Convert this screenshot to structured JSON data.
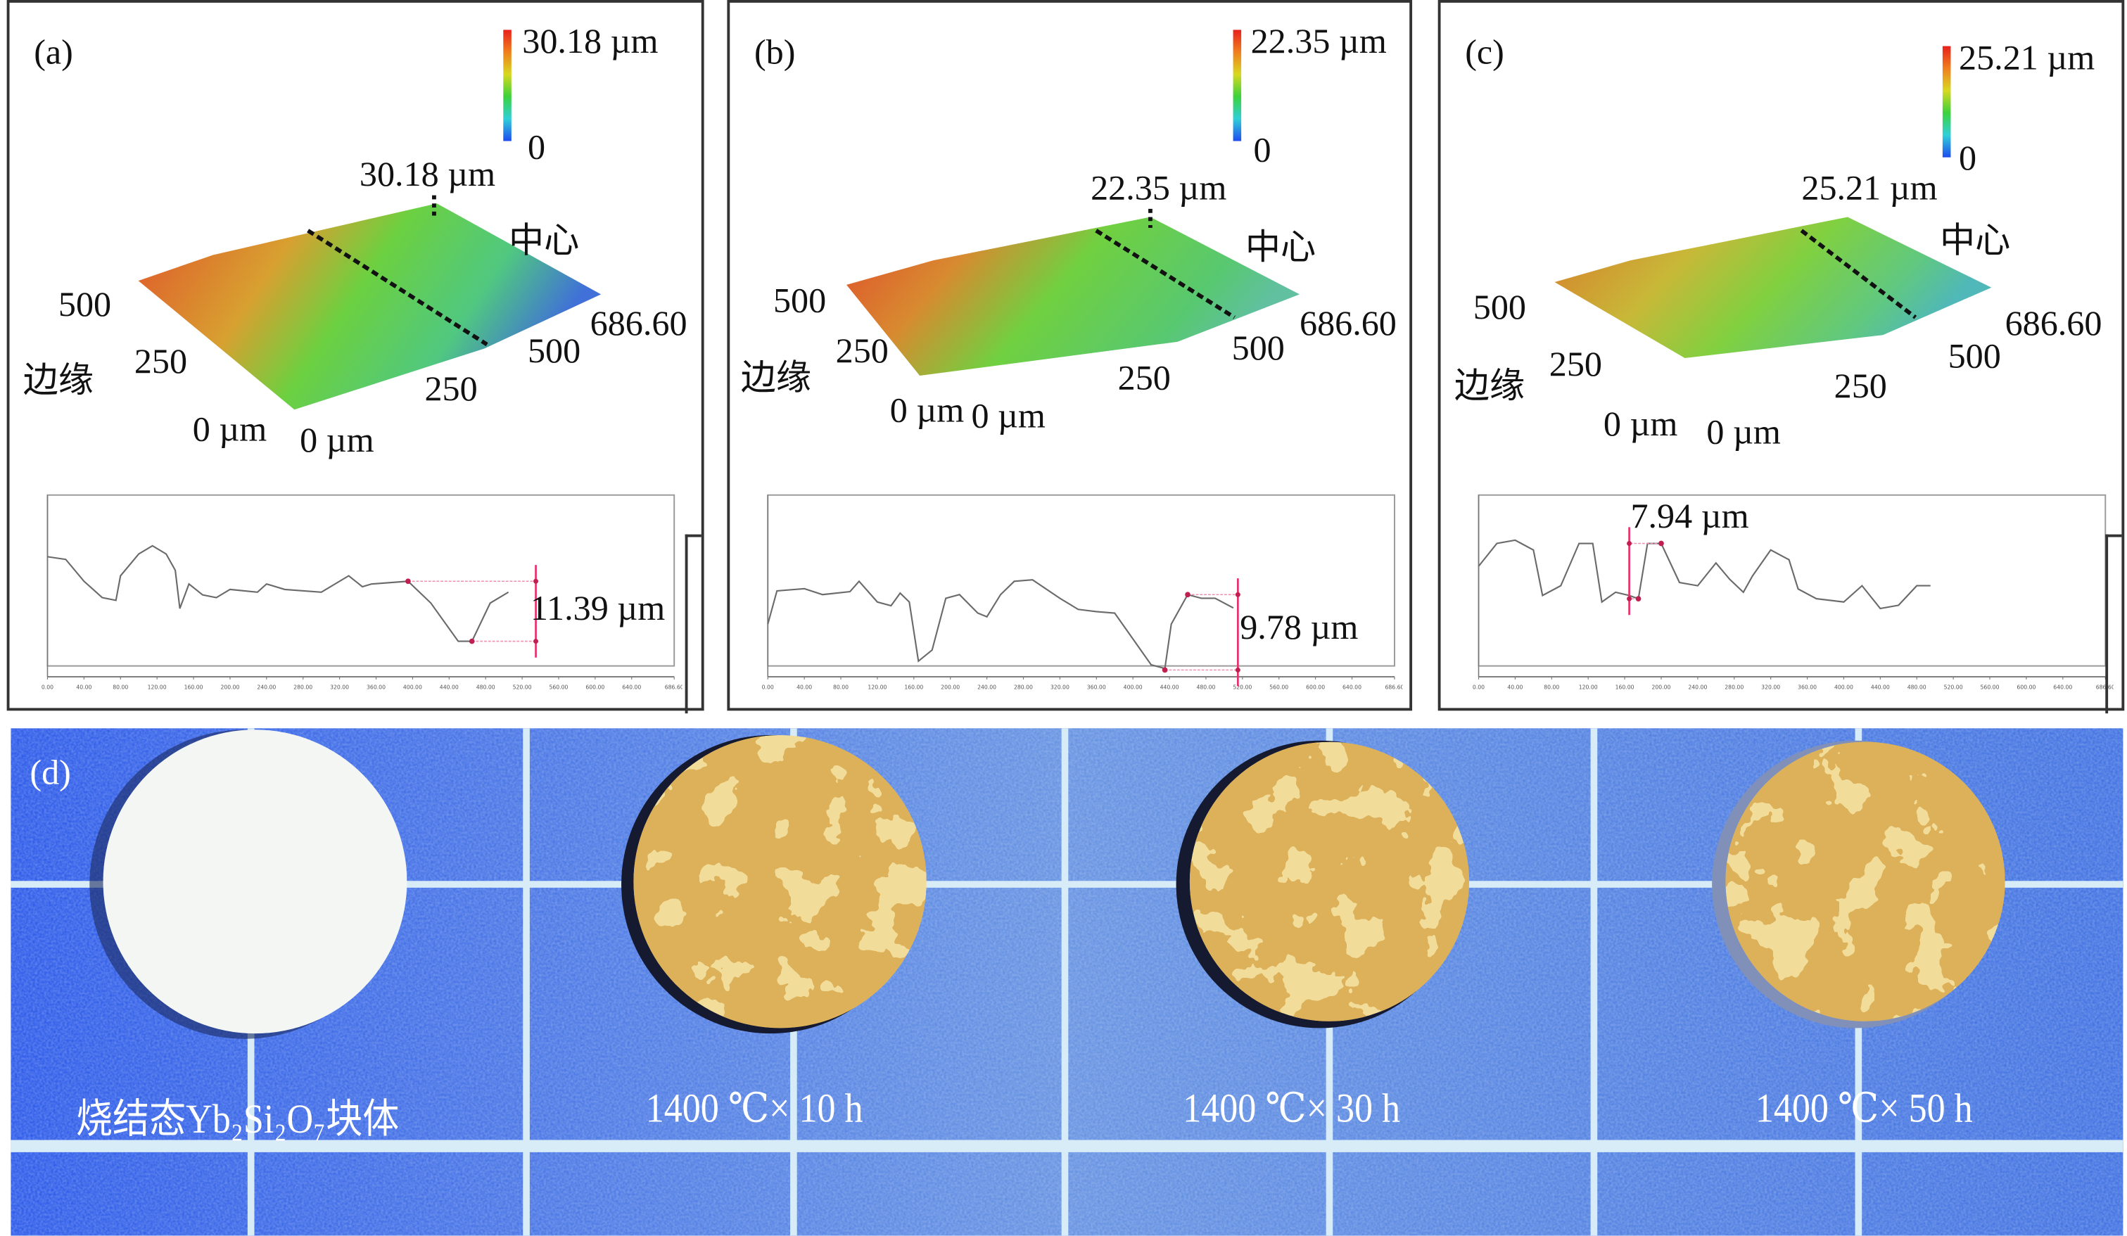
{
  "panels": [
    {
      "id": "a",
      "label": "(a)",
      "colorbar_max": "30.18 µm",
      "colorbar_min": "0",
      "peak_label": "30.18 µm",
      "center_label": "中心",
      "edge_label": "边缘",
      "y_axis_ticks": [
        "500",
        "250",
        "0 µm"
      ],
      "x_axis_ticks": [
        "0 µm",
        "250",
        "500",
        "686.60"
      ],
      "step_height": "11.39 µm"
    },
    {
      "id": "b",
      "label": "(b)",
      "colorbar_max": "22.35 µm",
      "colorbar_min": "0",
      "peak_label": "22.35 µm",
      "center_label": "中心",
      "edge_label": "边缘",
      "y_axis_ticks": [
        "500",
        "250",
        "0 µm"
      ],
      "x_axis_ticks": [
        "0 µm",
        "250",
        "500",
        "686.60"
      ],
      "step_height": "9.78 µm"
    },
    {
      "id": "c",
      "label": "(c)",
      "colorbar_max": "25.21 µm",
      "colorbar_min": "0",
      "peak_label": "25.21 µm",
      "center_label": "中心",
      "edge_label": "边缘",
      "y_axis_ticks": [
        "500",
        "250",
        "0 µm"
      ],
      "x_axis_ticks": [
        "0 µm",
        "250",
        "500",
        "686.60"
      ],
      "step_height": "7.94 µm"
    }
  ],
  "photo": {
    "label": "(d)",
    "samples": [
      "烧结态Yb₂Si₂O₇块体",
      "1400 ℃× 10 h",
      "1400 ℃× 30 h",
      "1400 ℃× 50 h"
    ],
    "colors": {
      "background": "#2a5fe6",
      "grid": "#d8ecf8",
      "pristine": "#f4f6f4",
      "oxide": "#b8741c",
      "disk_base": "#f2dc9a"
    }
  },
  "chart_data": [
    {
      "type": "line",
      "panel": "a",
      "unit": "µm",
      "xlim": [
        0,
        686.6
      ],
      "ylim": [
        -1.51,
        31.8
      ],
      "x_ticks": [
        "0.00",
        "40.00",
        "80.00",
        "120.00",
        "160.00",
        "200.00",
        "240.00",
        "280.00",
        "320.00",
        "360.00",
        "400.00",
        "440.00",
        "480.00",
        "520.00",
        "560.00",
        "600.00",
        "640.00",
        "686.60"
      ],
      "x": [
        0,
        20,
        40,
        60,
        75,
        80,
        100,
        115,
        130,
        140,
        145,
        155,
        170,
        185,
        200,
        230,
        240,
        260,
        300,
        330,
        345,
        355,
        395,
        420,
        450,
        465,
        485,
        505
      ],
      "y": [
        20.5,
        20,
        16,
        13,
        12.5,
        17,
        21,
        22.5,
        21,
        18,
        11,
        15.5,
        13.5,
        13,
        14.5,
        14,
        15.5,
        14.5,
        14,
        17,
        15,
        15.5,
        16,
        12,
        5,
        5,
        12,
        14
      ],
      "markers": [
        {
          "x": 395,
          "y": 16
        },
        {
          "x": 465,
          "y": 5
        }
      ],
      "measure_x": 535,
      "annotation": "11.39 µm"
    },
    {
      "type": "line",
      "panel": "b",
      "unit": "µm",
      "xlim": [
        0,
        686.6
      ],
      "ylim": [
        -1.12,
        23.47
      ],
      "x_ticks": [
        "0.00",
        "40.00",
        "80.00",
        "120.00",
        "160.00",
        "200.00",
        "240.00",
        "280.00",
        "320.00",
        "360.00",
        "400.00",
        "440.00",
        "480.00",
        "520.00",
        "560.00",
        "600.00",
        "640.00",
        "686.60"
      ],
      "x": [
        0,
        10,
        40,
        60,
        90,
        100,
        120,
        135,
        145,
        155,
        165,
        180,
        195,
        210,
        230,
        240,
        255,
        270,
        290,
        320,
        340,
        360,
        380,
        400,
        420,
        435,
        442,
        460,
        475,
        490,
        510
      ],
      "y": [
        6,
        10.5,
        10.8,
        10,
        10.4,
        11.8,
        9,
        8.5,
        10.2,
        9,
        1,
        2.5,
        9.5,
        10,
        7.5,
        7,
        10,
        11.8,
        12,
        9.5,
        8,
        7.7,
        7.5,
        4,
        0.5,
        0,
        6,
        10,
        9.5,
        9.5,
        8.2
      ],
      "markers": [
        {
          "x": 460,
          "y": 10
        },
        {
          "x": 435,
          "y": -0.2
        }
      ],
      "measure_x": 515,
      "annotation": "9.78 µm"
    },
    {
      "type": "line",
      "panel": "c",
      "unit": "µm",
      "xlim": [
        0,
        686.6
      ],
      "ylim": [
        -1.5,
        26.44
      ],
      "x_ticks": [
        "0.00",
        "40.00",
        "80.00",
        "120.00",
        "160.00",
        "200.00",
        "240.00",
        "280.00",
        "320.00",
        "360.00",
        "400.00",
        "440.00",
        "480.00",
        "520.00",
        "560.00",
        "600.00",
        "640.00",
        "686.60"
      ],
      "x": [
        0,
        20,
        40,
        60,
        70,
        90,
        110,
        125,
        135,
        150,
        165,
        175,
        185,
        200,
        220,
        240,
        260,
        275,
        290,
        300,
        320,
        340,
        350,
        370,
        400,
        420,
        440,
        460,
        480,
        495
      ],
      "y": [
        15.5,
        19,
        19.5,
        18,
        11,
        12.5,
        19,
        19,
        10,
        11.5,
        11,
        10.5,
        19,
        19,
        13,
        12.5,
        16,
        13.5,
        11.5,
        14,
        18,
        16.5,
        12,
        10.5,
        10,
        12.5,
        9,
        9.5,
        12.5,
        12.5
      ],
      "markers": [
        {
          "x": 200,
          "y": 19
        },
        {
          "x": 175,
          "y": 10.5
        }
      ],
      "measure_x": 165,
      "annotation": "7.94 µm"
    }
  ]
}
